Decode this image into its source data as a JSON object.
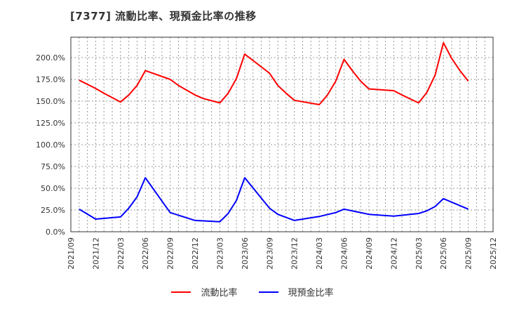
{
  "title": "[7377]  流動比率、現預金比率の推移",
  "legend": [
    {
      "label": "流動比率",
      "color": "#ff0000"
    },
    {
      "label": "現預金比率",
      "color": "#0000ff"
    }
  ],
  "chart_data": {
    "type": "line",
    "title": "[7377] 流動比率、現預金比率の推移",
    "xlabel": "",
    "ylabel": "",
    "ylim": [
      0,
      220
    ],
    "yticks": [
      "0.0%",
      "25.0%",
      "50.0%",
      "75.0%",
      "100.0%",
      "125.0%",
      "150.0%",
      "175.0%",
      "200.0%"
    ],
    "xticks": [
      "2021/09",
      "2021/12",
      "2022/03",
      "2022/06",
      "2022/09",
      "2022/12",
      "2023/03",
      "2023/06",
      "2023/09",
      "2023/12",
      "2024/03",
      "2024/06",
      "2024/09",
      "2024/12",
      "2025/03",
      "2025/06",
      "2025/09",
      "2025/12"
    ],
    "grid": true,
    "legend_position": "bottom",
    "series": [
      {
        "name": "流動比率",
        "color": "#ff0000",
        "points": [
          [
            "2021/10",
            174
          ],
          [
            "2021/12",
            164.5
          ],
          [
            "2022/01",
            159
          ],
          [
            "2022/03",
            149
          ],
          [
            "2022/04",
            157
          ],
          [
            "2022/05",
            168
          ],
          [
            "2022/06",
            185
          ],
          [
            "2022/09",
            175
          ],
          [
            "2022/10",
            168
          ],
          [
            "2022/12",
            157
          ],
          [
            "2023/01",
            153
          ],
          [
            "2023/03",
            148
          ],
          [
            "2023/04",
            159
          ],
          [
            "2023/05",
            176
          ],
          [
            "2023/06",
            204
          ],
          [
            "2023/09",
            182
          ],
          [
            "2023/10",
            168
          ],
          [
            "2023/11",
            159
          ],
          [
            "2023/12",
            151
          ],
          [
            "2024/03",
            146
          ],
          [
            "2024/04",
            157
          ],
          [
            "2024/05",
            173
          ],
          [
            "2024/06",
            198
          ],
          [
            "2024/07",
            185
          ],
          [
            "2024/08",
            173
          ],
          [
            "2024/09",
            164
          ],
          [
            "2024/12",
            162
          ],
          [
            "2025/01",
            157
          ],
          [
            "2025/03",
            148
          ],
          [
            "2025/04",
            160
          ],
          [
            "2025/05",
            180
          ],
          [
            "2025/06",
            217
          ],
          [
            "2025/07",
            199
          ],
          [
            "2025/08",
            185
          ],
          [
            "2025/09",
            173
          ]
        ]
      },
      {
        "name": "現預金比率",
        "color": "#0000ff",
        "points": [
          [
            "2021/10",
            26
          ],
          [
            "2021/12",
            14.5
          ],
          [
            "2022/03",
            17
          ],
          [
            "2022/04",
            27
          ],
          [
            "2022/05",
            40
          ],
          [
            "2022/06",
            62
          ],
          [
            "2022/09",
            22
          ],
          [
            "2022/12",
            13
          ],
          [
            "2023/03",
            11.5
          ],
          [
            "2023/04",
            21
          ],
          [
            "2023/05",
            36
          ],
          [
            "2023/06",
            62
          ],
          [
            "2023/09",
            27
          ],
          [
            "2023/10",
            20
          ],
          [
            "2023/12",
            13
          ],
          [
            "2024/03",
            17.5
          ],
          [
            "2024/05",
            22
          ],
          [
            "2024/06",
            26
          ],
          [
            "2024/09",
            20
          ],
          [
            "2024/12",
            18
          ],
          [
            "2025/03",
            21
          ],
          [
            "2025/04",
            24
          ],
          [
            "2025/05",
            29
          ],
          [
            "2025/06",
            38
          ],
          [
            "2025/09",
            26
          ]
        ]
      }
    ]
  }
}
